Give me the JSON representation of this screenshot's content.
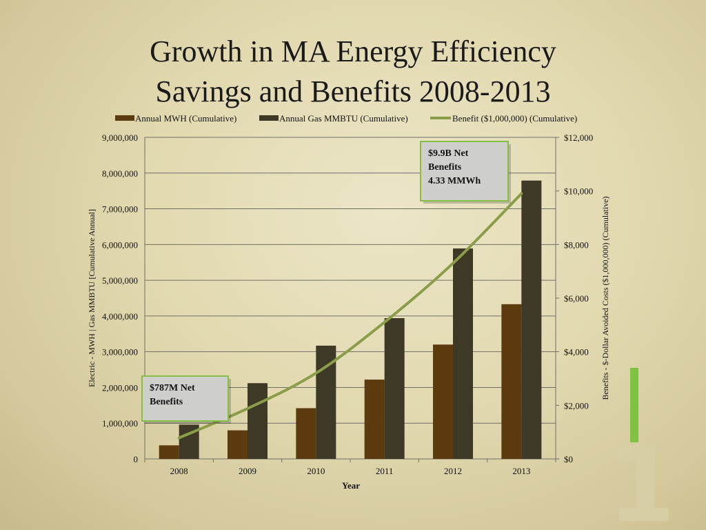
{
  "slide": {
    "title_line1": "Growth in MA Energy Efficiency",
    "title_line2": "Savings and Benefits 2008-2013",
    "page_number": "1"
  },
  "colors": {
    "mwh_bar": "#5c3b0e",
    "gas_bar": "#3e3827",
    "benefit_line": "#8a9d48",
    "annotation_border": "#86bf47",
    "annotation_fill": "#cfcfce",
    "accent_bar": "#7ec242"
  },
  "chart_data": {
    "type": "bar",
    "categories": [
      "2008",
      "2009",
      "2010",
      "2011",
      "2012",
      "2013"
    ],
    "xlabel": "Year",
    "ylabel": "Electric - MWH | Gas MMBTU [Cumulative Annual]",
    "y2label": "Benefits - $-Dollar Avoided Costs ($1,000,000) (Cumulative)",
    "ylim": [
      0,
      9000000
    ],
    "y2lim": [
      0,
      12000
    ],
    "yticks": [
      "0",
      "1,000,000",
      "2,000,000",
      "3,000,000",
      "4,000,000",
      "5,000,000",
      "6,000,000",
      "7,000,000",
      "8,000,000",
      "9,000,000"
    ],
    "y2ticks": [
      "$0",
      "$2,000",
      "$4,000",
      "$6,000",
      "$8,000",
      "$10,000",
      "$12,000"
    ],
    "grid": true,
    "legend_position": "top",
    "series": [
      {
        "name": "Annual MWH (Cumulative)",
        "type": "bar",
        "axis": "left",
        "values": [
          380000,
          800000,
          1420000,
          2220000,
          3200000,
          4330000
        ]
      },
      {
        "name": "Annual Gas MMBTU (Cumulative)",
        "type": "bar",
        "axis": "left",
        "values": [
          960000,
          2120000,
          3170000,
          3940000,
          5890000,
          7790000
        ]
      },
      {
        "name": "Benefit ($1,000,000) (Cumulative)",
        "type": "line",
        "axis": "right",
        "values": [
          787,
          1880,
          3200,
          5100,
          7300,
          9900
        ]
      }
    ],
    "annotations": [
      {
        "lines": [
          "$787M Net",
          "Benefits"
        ],
        "category": "2008"
      },
      {
        "lines": [
          "$9.9B Net",
          "Benefits",
          "4.33 MMWh"
        ],
        "category": "2013"
      }
    ]
  }
}
